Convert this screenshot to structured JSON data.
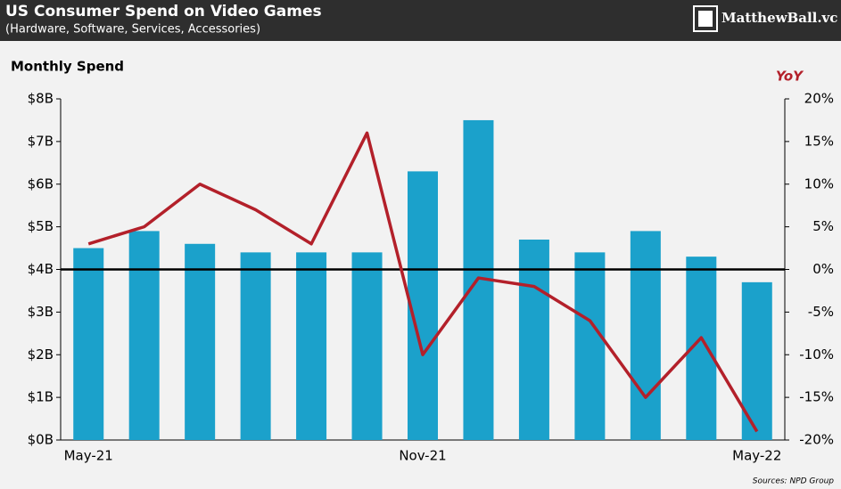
{
  "header": {
    "logo": "MatthewBall.vc"
  },
  "chart_data": {
    "type": "bar",
    "title": "US Consumer Spend on Video Games",
    "subtitle": "(Hardware, Software, Services, Accessories)",
    "y_label": "Monthly Spend",
    "y2_label": "YoY",
    "source": "Sources: NPD Group",
    "categories": [
      "May-21",
      null,
      null,
      null,
      null,
      null,
      "Nov-21",
      null,
      null,
      null,
      null,
      null,
      "May-22"
    ],
    "series": [
      {
        "name": "Monthly Spend",
        "type": "bar",
        "color": "#1ba1cb",
        "values": [
          4.5,
          4.9,
          4.6,
          4.4,
          4.4,
          4.4,
          6.3,
          7.5,
          4.7,
          4.4,
          4.9,
          4.3,
          3.7
        ]
      },
      {
        "name": "YoY",
        "type": "line",
        "axis": "y2",
        "color": "#b3202a",
        "values": [
          3,
          5,
          10,
          7,
          3,
          16,
          -10,
          -1,
          -2,
          -6,
          -15,
          -8,
          -19
        ]
      }
    ],
    "ylim": [
      0,
      8
    ],
    "yticks": [
      {
        "value": 0,
        "label": "$0B"
      },
      {
        "value": 1,
        "label": "$1B"
      },
      {
        "value": 2,
        "label": "$2B"
      },
      {
        "value": 3,
        "label": "$3B"
      },
      {
        "value": 4,
        "label": "$4B"
      },
      {
        "value": 5,
        "label": "$5B"
      },
      {
        "value": 6,
        "label": "$6B"
      },
      {
        "value": 7,
        "label": "$7B"
      },
      {
        "value": 8,
        "label": "$8B"
      }
    ],
    "y2lim": [
      -20,
      20
    ],
    "y2ticks": [
      {
        "value": -20,
        "label": "-20%"
      },
      {
        "value": -15,
        "label": "-15%"
      },
      {
        "value": -10,
        "label": "-10%"
      },
      {
        "value": -5,
        "label": "-5%"
      },
      {
        "value": 0,
        "label": "0%"
      },
      {
        "value": 5,
        "label": "5%"
      },
      {
        "value": 10,
        "label": "10%"
      },
      {
        "value": 15,
        "label": "15%"
      },
      {
        "value": 20,
        "label": "20%"
      }
    ],
    "zero_line_y2": true
  }
}
